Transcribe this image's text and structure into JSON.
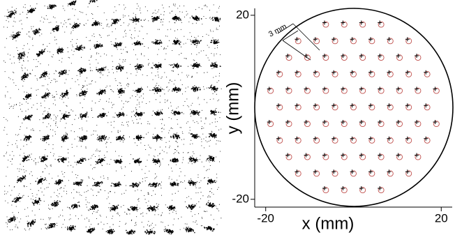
{
  "chart_data": {
    "type": "scatter",
    "xlabel": "x (mm)",
    "ylabel": "y (mm)",
    "annotation": "3 mm",
    "xlim": [
      -22.5,
      22.5
    ],
    "ylim": [
      -21.7,
      21.5
    ],
    "xticks": [
      -20,
      20
    ],
    "yticks": [
      -20,
      20
    ],
    "series": [
      {
        "marker": "circle",
        "color": "#c0504d",
        "x": [
          -6.3,
          -2.1,
          2.1,
          6.3,
          -12.6,
          -8.4,
          -4.2,
          0,
          4.2,
          8.4,
          12.6,
          -14.7,
          -10.5,
          -6.3,
          -2.1,
          2.1,
          6.3,
          10.5,
          14.7,
          -16.8,
          -12.6,
          -8.4,
          -4.2,
          0,
          4.2,
          8.4,
          12.6,
          16.8,
          -18.9,
          -14.7,
          -10.5,
          -6.3,
          -2.1,
          2.1,
          6.3,
          10.5,
          14.7,
          18.9,
          -16.8,
          -12.6,
          -8.4,
          -4.2,
          0,
          4.2,
          8.4,
          12.6,
          16.8,
          -18.9,
          -14.7,
          -10.5,
          -6.3,
          -2.1,
          2.1,
          6.3,
          10.5,
          14.7,
          18.9,
          -16.8,
          -12.6,
          -8.4,
          -4.2,
          0,
          4.2,
          8.4,
          12.6,
          16.8,
          -14.7,
          -10.5,
          -6.3,
          -2.1,
          2.1,
          6.3,
          10.5,
          14.7,
          -12.6,
          -8.4,
          -4.2,
          0,
          4.2,
          8.4,
          12.6,
          -6.3,
          -2.1,
          2.1,
          6.3
        ],
        "values": [
          18,
          18,
          18,
          18,
          14.4,
          14.4,
          14.4,
          14.4,
          14.4,
          14.4,
          14.4,
          10.8,
          10.8,
          10.8,
          10.8,
          10.8,
          10.8,
          10.8,
          10.8,
          7.2,
          7.2,
          7.2,
          7.2,
          7.2,
          7.2,
          7.2,
          7.2,
          7.2,
          3.6,
          3.6,
          3.6,
          3.6,
          3.6,
          3.6,
          3.6,
          3.6,
          3.6,
          3.6,
          0,
          0,
          0,
          0,
          0,
          0,
          0,
          0,
          0,
          -3.6,
          -3.6,
          -3.6,
          -3.6,
          -3.6,
          -3.6,
          -3.6,
          -3.6,
          -3.6,
          -3.6,
          -7.2,
          -7.2,
          -7.2,
          -7.2,
          -7.2,
          -7.2,
          -7.2,
          -7.2,
          -7.2,
          -10.8,
          -10.8,
          -10.8,
          -10.8,
          -10.8,
          -10.8,
          -10.8,
          -10.8,
          -14.4,
          -14.4,
          -14.4,
          -14.4,
          -14.4,
          -14.4,
          -14.4,
          -18,
          -18,
          -18,
          -18
        ]
      },
      {
        "marker": "cross",
        "color": "#000000",
        "x": [
          -6.6,
          -2.4,
          1.8,
          6,
          -12.9,
          -8.7,
          -4.5,
          -0.3,
          3.9,
          8.1,
          12.3,
          -15,
          -10.8,
          -6.6,
          -2.4,
          1.8,
          6,
          10.2,
          14.4,
          -17.1,
          -12.9,
          -8.7,
          -4.5,
          -0.3,
          3.9,
          8.1,
          12.3,
          16.5,
          -19.2,
          -15,
          -10.8,
          -6.6,
          -2.4,
          1.8,
          6,
          10.2,
          14.4,
          18.6,
          -17.1,
          -12.9,
          -8.7,
          -4.5,
          -0.3,
          3.9,
          8.1,
          12.3,
          16.5,
          -19.2,
          -15,
          -10.8,
          -6.6,
          -2.4,
          1.8,
          6,
          10.2,
          14.4,
          18.6,
          -17.1,
          -12.9,
          -8.7,
          -4.5,
          -0.3,
          3.9,
          8.1,
          12.3,
          16.5,
          -15,
          -10.8,
          -6.6,
          -2.4,
          1.8,
          6,
          10.2,
          14.4,
          -12.9,
          -8.7,
          -4.5,
          -0.3,
          3.9,
          8.1,
          12.3,
          -6.6,
          -2.4,
          1.8,
          6
        ],
        "values": [
          18.4,
          18.4,
          18.4,
          18.4,
          14.8,
          14.8,
          14.8,
          14.8,
          14.8,
          14.8,
          14.8,
          11.2,
          11.2,
          11.2,
          11.2,
          11.2,
          11.2,
          11.2,
          11.2,
          7.6,
          7.6,
          7.6,
          7.6,
          7.6,
          7.6,
          7.6,
          7.6,
          7.6,
          4,
          4,
          4,
          4,
          4,
          4,
          4,
          4,
          4,
          4,
          0.4,
          0.4,
          0.4,
          0.4,
          0.4,
          0.4,
          0.4,
          0.4,
          0.4,
          -3.2,
          -3.2,
          -3.2,
          -3.2,
          -3.2,
          -3.2,
          -3.2,
          -3.2,
          -3.2,
          -3.2,
          -6.8,
          -6.8,
          -6.8,
          -6.8,
          -6.8,
          -6.8,
          -6.8,
          -6.8,
          -6.8,
          -10.4,
          -10.4,
          -10.4,
          -10.4,
          -10.4,
          -10.4,
          -10.4,
          -10.4,
          -14,
          -14,
          -14,
          -14,
          -14,
          -14,
          -14,
          -17.6,
          -17.6,
          -17.6,
          -17.6
        ]
      }
    ]
  }
}
